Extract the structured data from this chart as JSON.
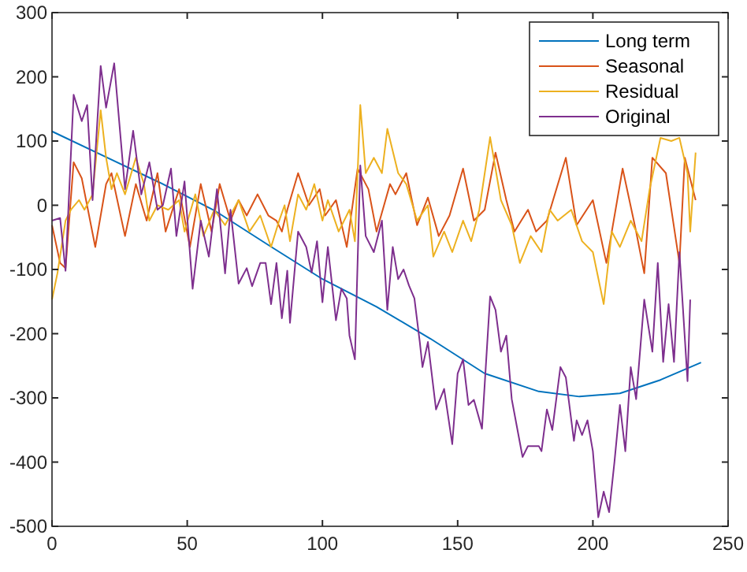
{
  "chart_data": {
    "type": "line",
    "xlim": [
      0,
      250
    ],
    "ylim": [
      -500,
      300
    ],
    "xticks": [
      0,
      50,
      100,
      150,
      200,
      250
    ],
    "yticks": [
      -500,
      -400,
      -300,
      -200,
      -100,
      0,
      100,
      200,
      300
    ],
    "grid": false,
    "legend": "top right",
    "marker": "none",
    "line_style": "solid",
    "series": [
      {
        "name": "Long term",
        "color": "#0072bd",
        "x": [
          0,
          20,
          40,
          60,
          80,
          100,
          120,
          140,
          160,
          180,
          195,
          210,
          225,
          240
        ],
        "values": [
          115,
          75,
          35,
          -8,
          -62,
          -115,
          -158,
          -208,
          -262,
          -290,
          -298,
          -293,
          -272,
          -245
        ]
      },
      {
        "name": "Seasonal",
        "color": "#d95319",
        "x": [
          0,
          3,
          5,
          8,
          11,
          16,
          20,
          22,
          27,
          31,
          35,
          39,
          42,
          47,
          51,
          55,
          59,
          62,
          66,
          69,
          72,
          76,
          80,
          83,
          85,
          87,
          91,
          95,
          99,
          101,
          105,
          109,
          113,
          117,
          120,
          125,
          127,
          131,
          135,
          139,
          143,
          147,
          152,
          156,
          160,
          164,
          168,
          171,
          176,
          179,
          183,
          190,
          194,
          200,
          205,
          211,
          216,
          219,
          222,
          227,
          232,
          234,
          238
        ],
        "values": [
          -31,
          -90,
          -98,
          67,
          42,
          -65,
          33,
          50,
          -48,
          33,
          -24,
          50,
          -41,
          25,
          -65,
          33,
          -41,
          33,
          -24,
          8,
          -16,
          17,
          -16,
          -24,
          -41,
          -7,
          50,
          0,
          25,
          -16,
          8,
          -65,
          57,
          25,
          -41,
          33,
          17,
          50,
          -31,
          12,
          -48,
          -16,
          57,
          -24,
          -7,
          82,
          8,
          -41,
          -7,
          -41,
          -24,
          74,
          -31,
          8,
          -90,
          57,
          -41,
          -106,
          74,
          50,
          -90,
          74,
          8
        ]
      },
      {
        "name": "Residual",
        "color": "#edb120",
        "x": [
          0,
          2,
          5,
          7,
          10,
          12,
          15,
          18,
          20,
          22,
          24,
          27,
          31,
          34,
          36,
          39,
          43,
          47,
          49,
          53,
          56,
          60,
          64,
          69,
          73,
          77,
          81,
          84,
          86,
          88,
          91,
          94,
          97,
          100,
          102,
          106,
          110,
          112,
          114,
          116,
          119,
          122,
          124,
          128,
          131,
          135,
          139,
          141,
          145,
          148,
          152,
          155,
          158,
          162,
          166,
          170,
          173,
          177,
          181,
          184,
          187,
          192,
          196,
          200,
          204,
          207,
          210,
          214,
          218,
          221,
          225,
          229,
          232,
          235,
          236,
          238
        ],
        "values": [
          -147,
          -106,
          -24,
          -7,
          8,
          -7,
          17,
          148,
          74,
          25,
          50,
          17,
          74,
          33,
          -24,
          0,
          -7,
          8,
          -41,
          17,
          -48,
          -7,
          -31,
          8,
          -41,
          -16,
          -65,
          -24,
          0,
          -56,
          17,
          -7,
          33,
          -24,
          8,
          -41,
          -7,
          -56,
          156,
          50,
          74,
          50,
          119,
          50,
          33,
          -24,
          0,
          -80,
          -41,
          -73,
          -24,
          -56,
          -7,
          106,
          8,
          -31,
          -90,
          -48,
          -73,
          -7,
          -24,
          -7,
          -56,
          -73,
          -154,
          -41,
          -65,
          -24,
          -56,
          25,
          105,
          100,
          105,
          50,
          -41,
          82
        ]
      },
      {
        "name": "Original",
        "color": "#7e2f8e",
        "x": [
          0,
          3,
          5,
          8,
          11,
          13,
          15,
          18,
          20,
          23,
          27,
          30,
          33,
          36,
          39,
          41,
          44,
          46,
          49,
          52,
          55,
          58,
          61,
          64,
          66,
          69,
          72,
          74,
          77,
          79,
          81,
          83,
          85,
          87,
          88,
          91,
          94,
          96,
          98,
          100,
          102,
          105,
          107,
          109,
          110,
          112,
          114,
          116,
          119,
          122,
          124,
          126,
          128,
          130,
          132,
          134,
          136,
          137,
          139,
          142,
          145,
          148,
          150,
          152,
          154,
          156,
          159,
          162,
          164,
          166,
          168,
          170,
          174,
          176,
          180,
          181,
          183,
          185,
          188,
          190,
          193,
          194,
          196,
          198,
          200,
          202,
          204,
          206,
          208,
          210,
          212,
          214,
          216,
          219,
          222,
          224,
          226,
          228,
          230,
          232,
          235,
          236
        ],
        "values": [
          -24,
          -20,
          -102,
          172,
          131,
          156,
          8,
          217,
          152,
          221,
          25,
          116,
          17,
          67,
          -7,
          0,
          57,
          -48,
          37,
          -130,
          -24,
          -80,
          25,
          -106,
          -7,
          -122,
          -98,
          -126,
          -90,
          -90,
          -154,
          -90,
          -176,
          -102,
          -183,
          -41,
          -65,
          -105,
          -56,
          -151,
          -65,
          -179,
          -130,
          -145,
          -203,
          -240,
          62,
          -48,
          -73,
          -24,
          -163,
          -65,
          -115,
          -100,
          -125,
          -145,
          -213,
          -252,
          -213,
          -318,
          -286,
          -372,
          -262,
          -240,
          -311,
          -303,
          -348,
          -142,
          -163,
          -228,
          -203,
          -302,
          -392,
          -375,
          -375,
          -383,
          -318,
          -350,
          -252,
          -268,
          -367,
          -335,
          -358,
          -335,
          -383,
          -486,
          -446,
          -478,
          -399,
          -311,
          -383,
          -252,
          -302,
          -147,
          -228,
          -90,
          -244,
          -154,
          -244,
          -73,
          -274,
          -147
        ]
      }
    ]
  }
}
